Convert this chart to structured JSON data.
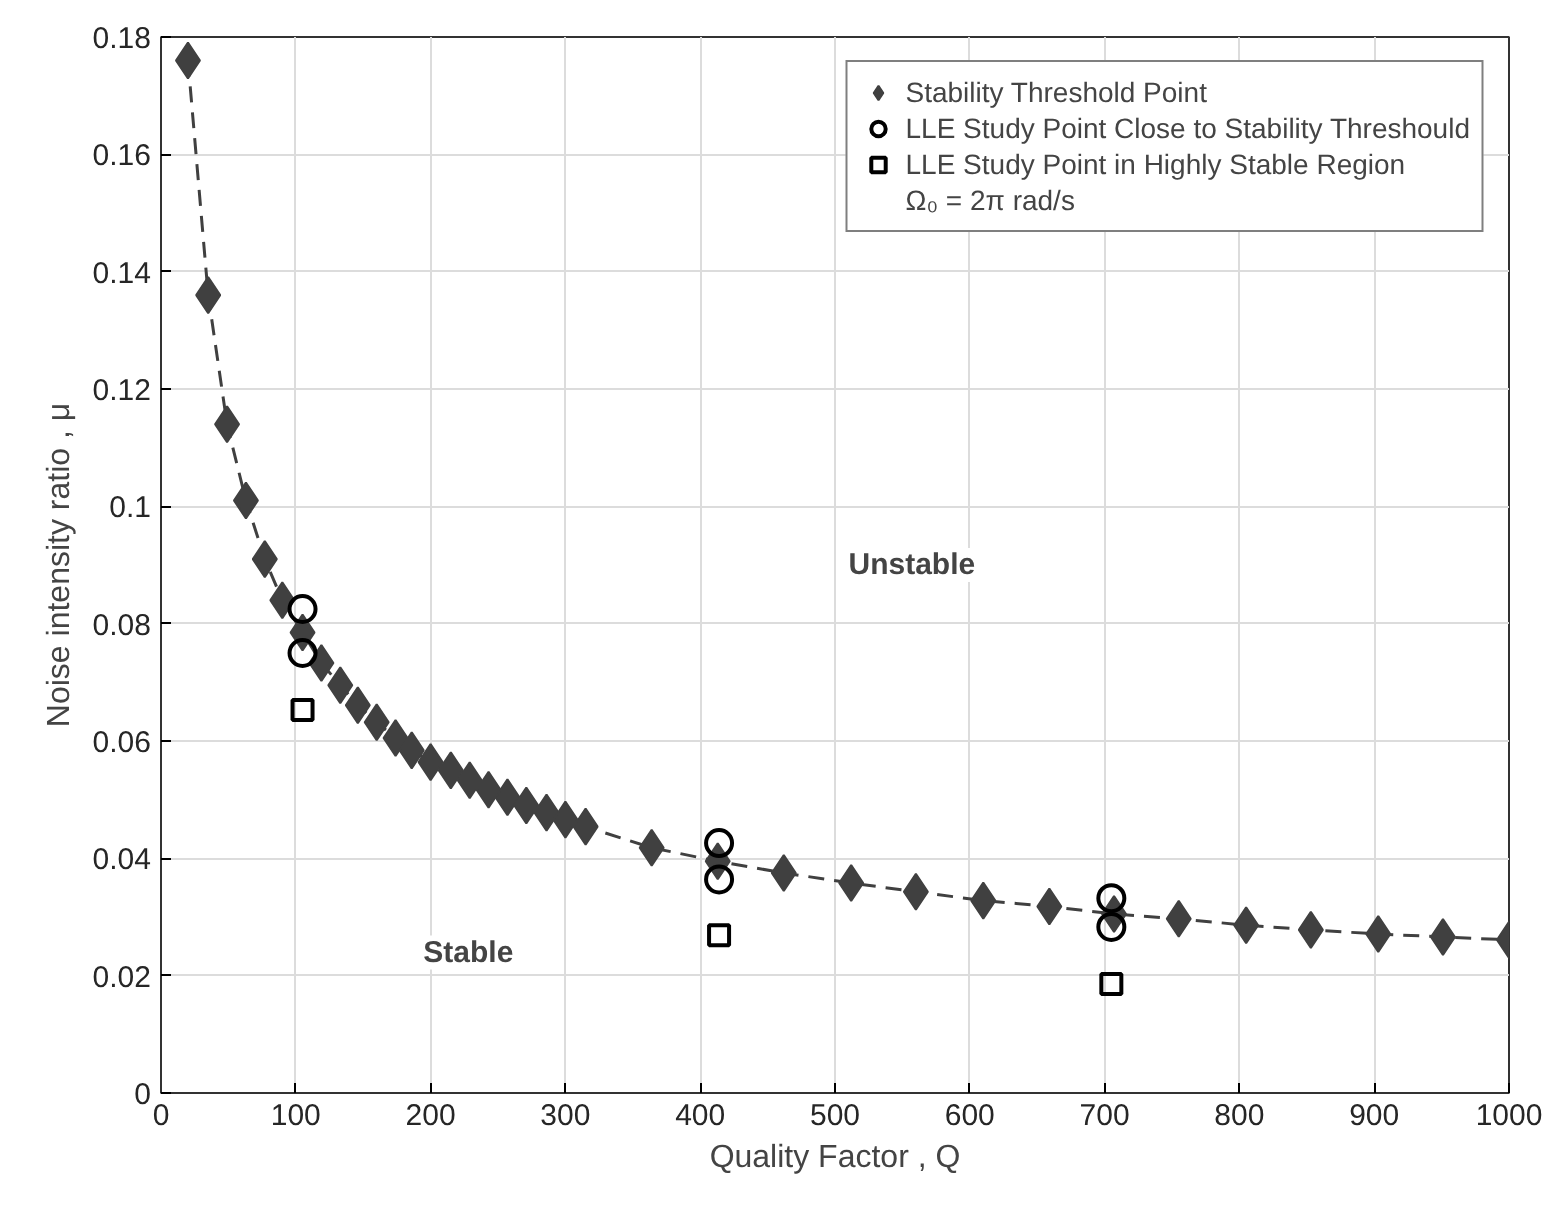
{
  "chart_data": {
    "type": "scatter",
    "xlabel": "Quality Factor , Q",
    "ylabel": "Noise intensity ratio , μ",
    "xlim": [
      0,
      1000
    ],
    "xticks": [
      0,
      100,
      200,
      300,
      400,
      500,
      600,
      700,
      800,
      900,
      1000
    ],
    "ylim": [
      0,
      0.18
    ],
    "yticks": [
      0,
      0.02,
      0.04,
      0.06,
      0.08,
      0.1,
      0.12,
      0.14,
      0.16,
      0.18
    ],
    "grid": true,
    "legend": "top right",
    "series": [
      {
        "name": "Stability Threshold Point",
        "type": "line",
        "marker": "diamond",
        "line_style": "dashed",
        "color": "#404040",
        "x": [
          20,
          35,
          49,
          63,
          77,
          90,
          105,
          119,
          133,
          146,
          160,
          174,
          186,
          200,
          215,
          229,
          243,
          257,
          271,
          286,
          300,
          315,
          364,
          413,
          462,
          512,
          560,
          610,
          659,
          707,
          755,
          805,
          853,
          903,
          951,
          1000
        ],
        "values": [
          0.176,
          0.136,
          0.114,
          0.101,
          0.091,
          0.084,
          0.0785,
          0.0733,
          0.0695,
          0.0661,
          0.0632,
          0.0605,
          0.0584,
          0.0564,
          0.055,
          0.0533,
          0.0517,
          0.0504,
          0.049,
          0.0478,
          0.0466,
          0.0454,
          0.0418,
          0.0395,
          0.0375,
          0.0358,
          0.0343,
          0.0328,
          0.0318,
          0.0305,
          0.0297,
          0.0286,
          0.0278,
          0.0271,
          0.0266,
          0.0261
        ]
      },
      {
        "name": "LLE Study Point Close to Stability Threshould",
        "marker": "circle",
        "color": "#000000",
        "x": [
          105,
          105,
          414,
          414,
          705,
          705
        ],
        "values": [
          0.0825,
          0.075,
          0.0426,
          0.0364,
          0.0332,
          0.0283
        ]
      },
      {
        "name": "LLE Study Point in Highly Stable Region",
        "marker": "square",
        "color": "#000000",
        "x": [
          105,
          414,
          705
        ],
        "values": [
          0.0653,
          0.0269,
          0.0186
        ]
      }
    ],
    "annotations": [
      "Ω₀ = 2π rad/s",
      "Unstable",
      "Stable"
    ]
  }
}
